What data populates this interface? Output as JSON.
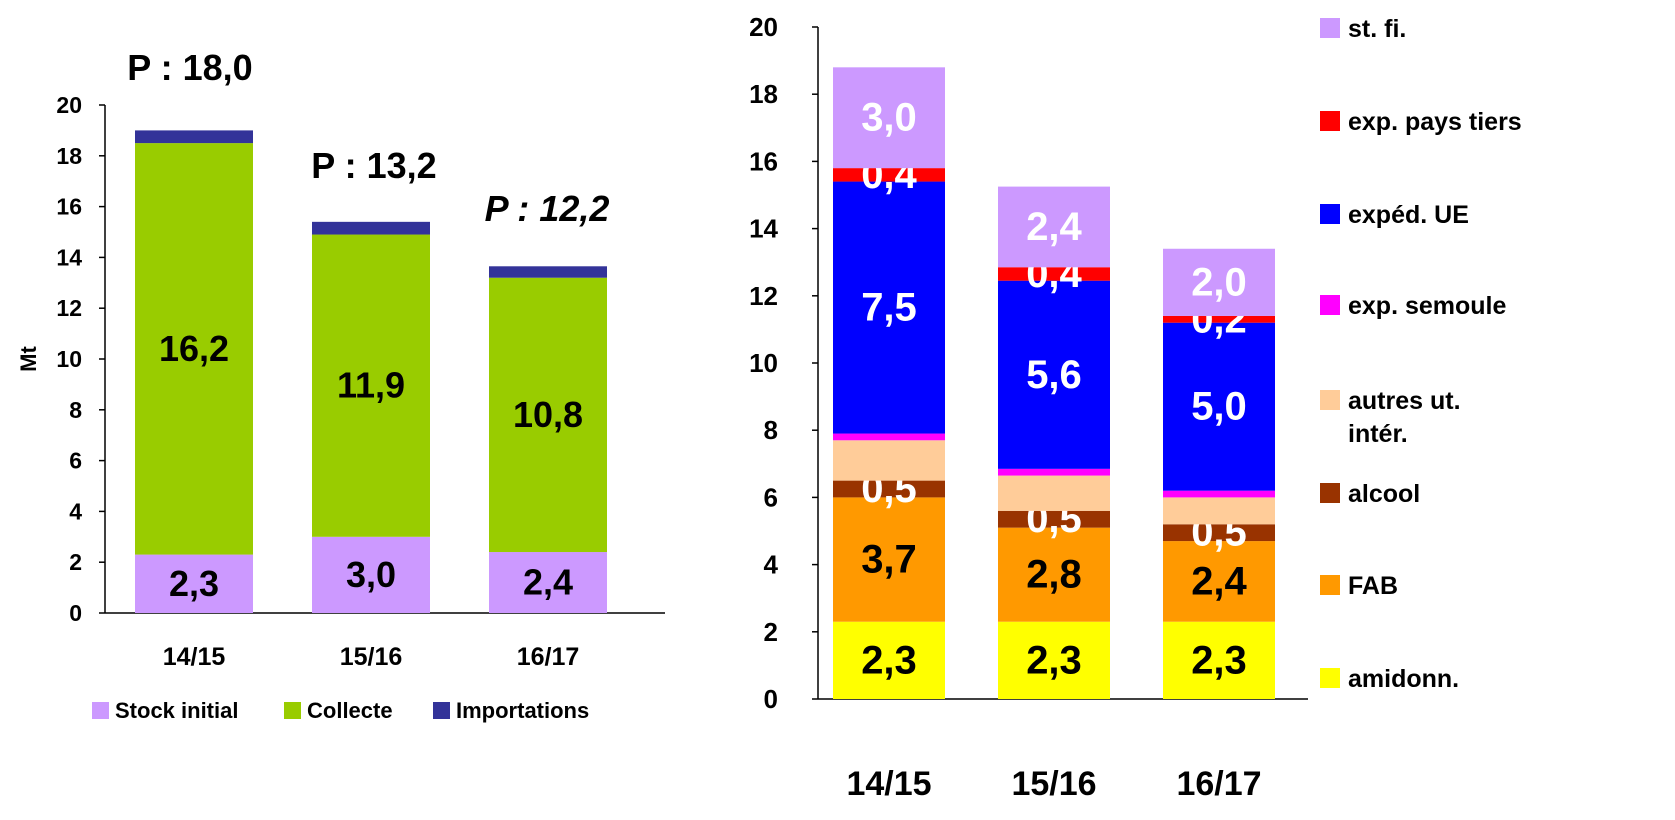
{
  "chart_data": [
    {
      "type": "bar",
      "stacked": true,
      "ylabel": "Mt",
      "ylim": [
        0,
        20
      ],
      "yticks": [
        "0",
        "2",
        "4",
        "6",
        "8",
        "10",
        "12",
        "14",
        "16",
        "18",
        "20"
      ],
      "categories": [
        "14/15",
        "15/16",
        "16/17"
      ],
      "series": [
        {
          "name": "Stock initial",
          "color": "#CC99FF",
          "values": [
            2.3,
            3.0,
            2.4
          ],
          "labels": [
            "2,3",
            "3,0",
            "2,4"
          ]
        },
        {
          "name": "Collecte",
          "color": "#99CC00",
          "values": [
            16.2,
            11.9,
            10.8
          ],
          "labels": [
            "16,2",
            "11,9",
            "10,8"
          ]
        },
        {
          "name": "Importations",
          "color": "#333399",
          "values": [
            0.5,
            0.5,
            0.45
          ],
          "labels": [
            "",
            "",
            ""
          ]
        }
      ],
      "annotations": [
        "P : 18,0",
        "P : 13,2",
        "P : 12,2"
      ],
      "legend": "bottom",
      "grid": false
    },
    {
      "type": "bar",
      "stacked": true,
      "ylim": [
        0,
        20
      ],
      "yticks": [
        "0",
        "2",
        "4",
        "6",
        "8",
        "10",
        "12",
        "14",
        "16",
        "18",
        "20"
      ],
      "categories": [
        "14/15",
        "15/16",
        "16/17"
      ],
      "series": [
        {
          "name": "amidonn.",
          "color": "#FFFF00",
          "values": [
            2.3,
            2.3,
            2.3
          ],
          "labels": [
            "2,3",
            "2,3",
            "2,3"
          ],
          "label_color": "#000000"
        },
        {
          "name": "FAB",
          "color": "#FF9900",
          "values": [
            3.7,
            2.8,
            2.4
          ],
          "labels": [
            "3,7",
            "2,8",
            "2,4"
          ],
          "label_color": "#000000"
        },
        {
          "name": "alcool",
          "color": "#993300",
          "values": [
            0.5,
            0.5,
            0.5
          ],
          "labels": [
            "0,5",
            "0,5",
            "0,5"
          ],
          "label_color": "#FFFFFF"
        },
        {
          "name": "autres ut. intér.",
          "color": "#FFCC99",
          "values": [
            1.2,
            1.05,
            0.8
          ],
          "labels": [
            "",
            "",
            ""
          ]
        },
        {
          "name": "exp. semoule",
          "color": "#FF00FF",
          "values": [
            0.2,
            0.2,
            0.2
          ],
          "labels": [
            "",
            "",
            ""
          ]
        },
        {
          "name": "expéd. UE",
          "color": "#0000FF",
          "values": [
            7.5,
            5.6,
            5.0
          ],
          "labels": [
            "7,5",
            "5,6",
            "5,0"
          ],
          "label_color": "#FFFFFF"
        },
        {
          "name": "exp. pays tiers",
          "color": "#FF0000",
          "values": [
            0.4,
            0.4,
            0.2
          ],
          "labels": [
            "0,4",
            "0,4",
            "0,2"
          ],
          "label_color": "#FFFFFF"
        },
        {
          "name": "st. fi.",
          "color": "#CC99FF",
          "values": [
            3.0,
            2.4,
            2.0
          ],
          "labels": [
            "3,0",
            "2,4",
            "2,0"
          ],
          "label_color": "#FFFFFF"
        }
      ],
      "legend": "right",
      "grid": false
    }
  ]
}
